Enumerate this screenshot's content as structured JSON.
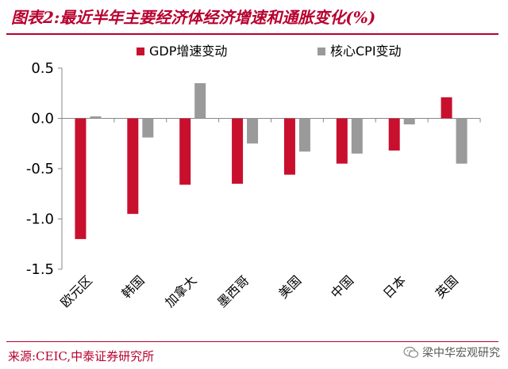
{
  "header": {
    "title": "图表2:最近半年主要经济体经济增速和通胀变化(%)"
  },
  "footer": {
    "source": "来源:CEIC,中泰证券研究所",
    "watermark": "梁中华宏观研究"
  },
  "colors": {
    "accent": "#b8002e",
    "gdp": "#c8102e",
    "cpi": "#9a9a9a"
  },
  "icons": {
    "watermark_icon": "wechat-icon"
  },
  "chart_data": {
    "type": "bar",
    "categories": [
      "欧元区",
      "韩国",
      "加拿大",
      "墨西哥",
      "美国",
      "中国",
      "日本",
      "英国"
    ],
    "series": [
      {
        "name": "GDP增速变动",
        "values": [
          -1.2,
          -0.95,
          -0.66,
          -0.65,
          -0.56,
          -0.45,
          -0.32,
          0.21
        ]
      },
      {
        "name": "核心CPI变动",
        "values": [
          0.02,
          -0.19,
          0.35,
          -0.25,
          -0.33,
          -0.35,
          -0.06,
          -0.45
        ]
      }
    ],
    "ylim": [
      -1.5,
      0.5
    ],
    "yticks": [
      "0.5",
      "0.0",
      "-0.5",
      "-1.0",
      "-1.5"
    ],
    "ytick_values": [
      0.5,
      0.0,
      -0.5,
      -1.0,
      -1.5
    ],
    "legend_position": "top",
    "grid": false
  }
}
